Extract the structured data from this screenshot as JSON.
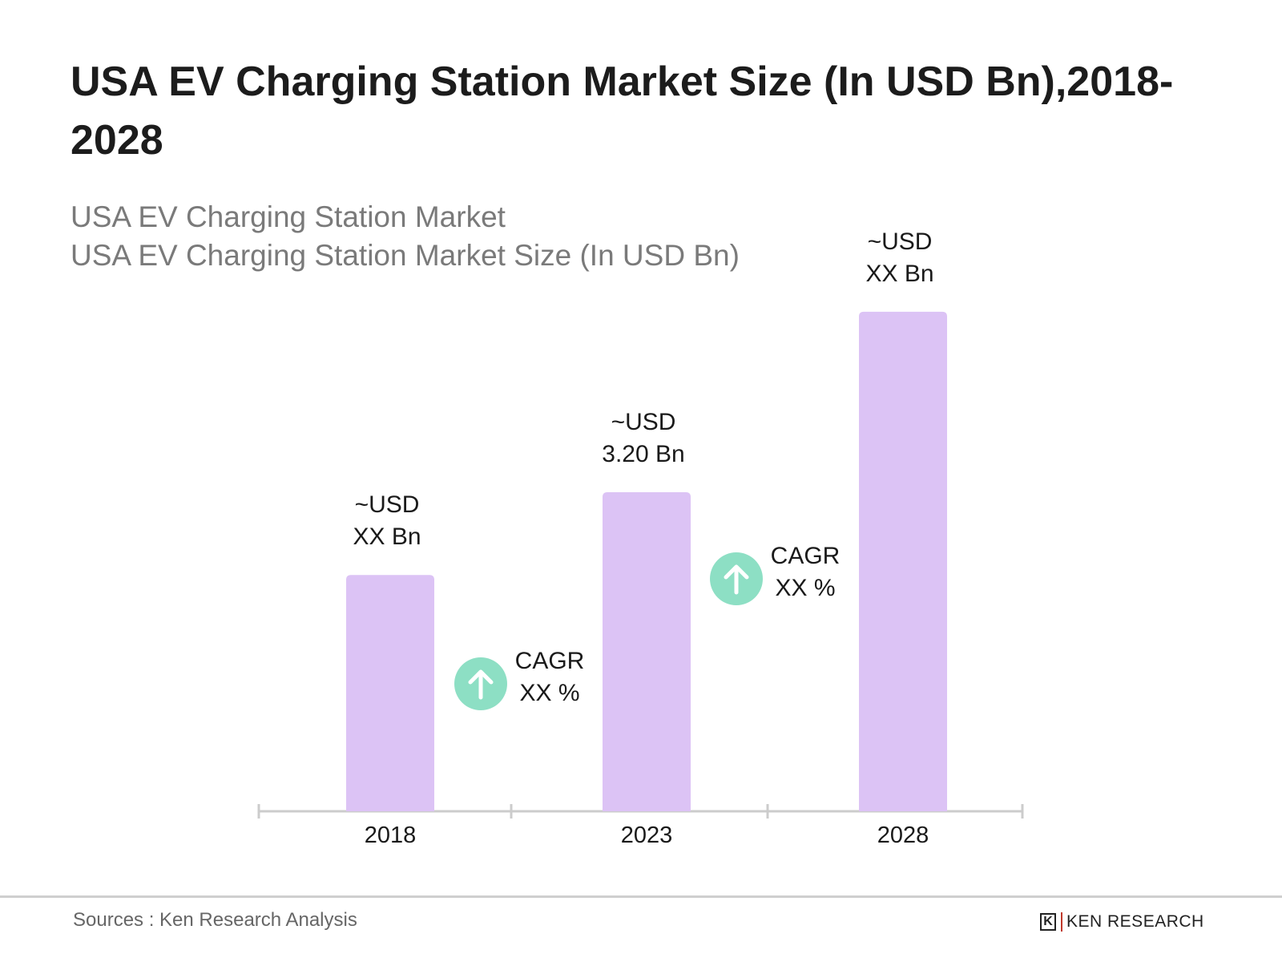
{
  "title": "USA EV Charging Station Market Size (In USD Bn),2018-2028",
  "subtitle_1": "USA EV Charging Station Market",
  "subtitle_2": "USA EV Charging Station Market Size (In USD Bn)",
  "source": "Sources : Ken Research Analysis",
  "logo_text": "KEN RESEARCH",
  "colors": {
    "bar": "#dcc3f5",
    "cagr_circle": "#8ddfc4",
    "axis": "#cccccc"
  },
  "chart_data": {
    "type": "bar",
    "categories": [
      "2018",
      "2023",
      "2028"
    ],
    "values": [
      2.37,
      3.2,
      5.01
    ],
    "data_labels": [
      {
        "line1": "~USD",
        "line2": "XX Bn"
      },
      {
        "line1": "~USD",
        "line2": "3.20 Bn"
      },
      {
        "line1": "~USD",
        "line2": "XX Bn"
      }
    ],
    "annotations": [
      {
        "icon": "arrow-up-icon",
        "line1": "CAGR",
        "line2": "XX %",
        "between": [
          "2018",
          "2023"
        ]
      },
      {
        "icon": "arrow-up-icon",
        "line1": "CAGR",
        "line2": "XX %",
        "between": [
          "2023",
          "2028"
        ]
      }
    ],
    "xlabel": "",
    "ylabel": "",
    "grid": false,
    "ylim": [
      0,
      5.5
    ]
  }
}
